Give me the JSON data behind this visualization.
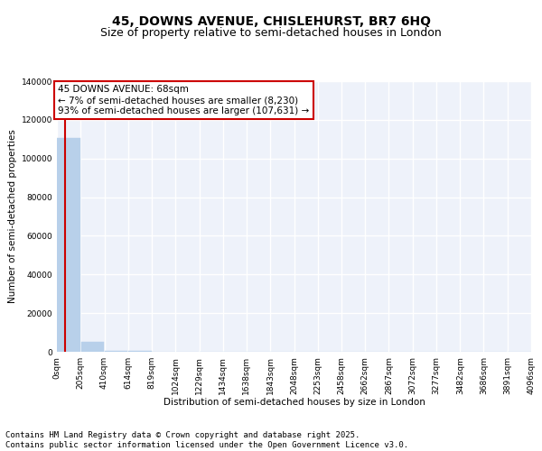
{
  "title": "45, DOWNS AVENUE, CHISLEHURST, BR7 6HQ",
  "subtitle": "Size of property relative to semi-detached houses in London",
  "xlabel": "Distribution of semi-detached houses by size in London",
  "ylabel": "Number of semi-detached properties",
  "property_size": 68,
  "pct_smaller": 7,
  "pct_larger": 93,
  "n_smaller": 8230,
  "n_larger": 107631,
  "bin_edges": [
    0,
    205,
    410,
    614,
    819,
    1024,
    1229,
    1434,
    1638,
    1843,
    2048,
    2253,
    2458,
    2662,
    2867,
    3072,
    3277,
    3482,
    3686,
    3891,
    4096
  ],
  "bar_heights": [
    110500,
    5200,
    600,
    250,
    120,
    70,
    45,
    30,
    20,
    14,
    10,
    7,
    5,
    4,
    3,
    2,
    2,
    1,
    1,
    1
  ],
  "bar_color": "#b8d0ea",
  "bar_edgecolor": "#b8d0ea",
  "marker_color": "#cc0000",
  "background_color": "#eef2fa",
  "grid_color": "#ffffff",
  "ylim": [
    0,
    140000
  ],
  "yticks": [
    0,
    20000,
    40000,
    60000,
    80000,
    100000,
    120000,
    140000
  ],
  "tick_labels": [
    "0sqm",
    "205sqm",
    "410sqm",
    "614sqm",
    "819sqm",
    "1024sqm",
    "1229sqm",
    "1434sqm",
    "1638sqm",
    "1843sqm",
    "2048sqm",
    "2253sqm",
    "2458sqm",
    "2662sqm",
    "2867sqm",
    "3072sqm",
    "3277sqm",
    "3482sqm",
    "3686sqm",
    "3891sqm",
    "4096sqm"
  ],
  "footer_line1": "Contains HM Land Registry data © Crown copyright and database right 2025.",
  "footer_line2": "Contains public sector information licensed under the Open Government Licence v3.0.",
  "title_fontsize": 10,
  "subtitle_fontsize": 9,
  "axis_label_fontsize": 7.5,
  "tick_fontsize": 6.5,
  "annotation_fontsize": 7.5,
  "footer_fontsize": 6.5
}
